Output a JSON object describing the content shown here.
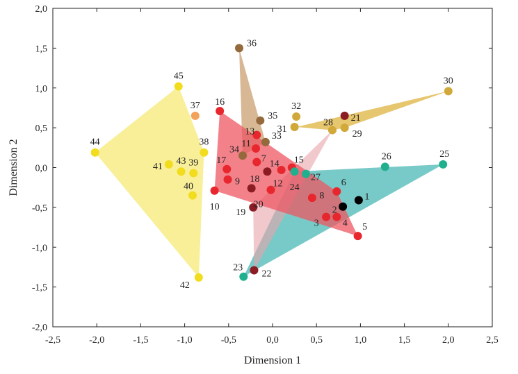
{
  "chart_data": {
    "type": "scatter",
    "title": "",
    "xlabel": "Dimension 1",
    "ylabel": "Dimension 2",
    "xlim": [
      -2.5,
      2.5
    ],
    "ylim": [
      -2.0,
      2.0
    ],
    "x_ticks": [
      "-2,5",
      "-2,0",
      "-1,5",
      "-1,0",
      "-0,5",
      "0,0",
      "0,5",
      "1,0",
      "1,5",
      "2,0",
      "2,5"
    ],
    "y_ticks": [
      "-2,0",
      "-1,5",
      "-1,0",
      "-0,5",
      "0,0",
      "0,5",
      "1,0",
      "1,5",
      "2,0"
    ],
    "tick_values_x": [
      -2.5,
      -2.0,
      -1.5,
      -1.0,
      -0.5,
      0.0,
      0.5,
      1.0,
      1.5,
      2.0,
      2.5
    ],
    "tick_values_y": [
      -2.0,
      -1.5,
      -1.0,
      -0.5,
      0.0,
      0.5,
      1.0,
      1.5,
      2.0
    ],
    "colors": {
      "yellow": "#f2dc1e",
      "orange": "#f3a25c",
      "red": "#e8262d",
      "darkred": "#8b1c24",
      "brown": "#946a3c",
      "gold": "#d1a93a",
      "teal": "#20b08e",
      "black": "#000000"
    },
    "hulls": [
      {
        "name": "yellow-group",
        "fill": "#f7ec86",
        "opacity": 0.85,
        "points": [
          [
            -2.02,
            0.19
          ],
          [
            -1.07,
            1.02
          ],
          [
            -0.78,
            0.19
          ],
          [
            -0.84,
            -1.38
          ]
        ]
      },
      {
        "name": "brown-group",
        "fill": "#c79a66",
        "opacity": 0.7,
        "points": [
          [
            -0.38,
            1.5
          ],
          [
            -0.08,
            0.32
          ],
          [
            -0.34,
            0.15
          ]
        ]
      },
      {
        "name": "gold-group",
        "fill": "#e0b84a",
        "opacity": 0.8,
        "points": [
          [
            0.27,
            0.51
          ],
          [
            2.0,
            0.96
          ],
          [
            0.82,
            0.5
          ],
          [
            0.68,
            0.47
          ]
        ]
      },
      {
        "name": "teal-group",
        "fill": "#3fb3b0",
        "opacity": 0.7,
        "points": [
          [
            0.25,
            -0.05
          ],
          [
            1.94,
            0.04
          ],
          [
            -0.33,
            -1.37
          ]
        ]
      },
      {
        "name": "pink-group",
        "fill": "#e8a3aa",
        "opacity": 0.6,
        "points": [
          [
            0.68,
            0.47
          ],
          [
            -0.22,
            -0.5
          ],
          [
            -0.21,
            -1.29
          ]
        ]
      },
      {
        "name": "red-group",
        "fill": "#ee5763",
        "opacity": 0.75,
        "points": [
          [
            -0.6,
            0.71
          ],
          [
            -0.66,
            -0.29
          ],
          [
            0.97,
            -0.86
          ],
          [
            0.73,
            -0.3
          ]
        ]
      }
    ],
    "points": [
      {
        "label": "1",
        "x": 0.98,
        "y": -0.41,
        "color": "black"
      },
      {
        "label": "2",
        "x": 0.8,
        "y": -0.49,
        "color": "black"
      },
      {
        "label": "3",
        "x": 0.61,
        "y": -0.62,
        "color": "red"
      },
      {
        "label": "4",
        "x": 0.73,
        "y": -0.62,
        "color": "red"
      },
      {
        "label": "5",
        "x": 0.97,
        "y": -0.86,
        "color": "red"
      },
      {
        "label": "6",
        "x": 0.73,
        "y": -0.3,
        "color": "red"
      },
      {
        "label": "7",
        "x": -0.18,
        "y": 0.07,
        "color": "red"
      },
      {
        "label": "8",
        "x": 0.45,
        "y": -0.38,
        "color": "red"
      },
      {
        "label": "9",
        "x": -0.51,
        "y": -0.15,
        "color": "red"
      },
      {
        "label": "10",
        "x": -0.66,
        "y": -0.29,
        "color": "red"
      },
      {
        "label": "11",
        "x": -0.19,
        "y": 0.24,
        "color": "red"
      },
      {
        "label": "12",
        "x": -0.02,
        "y": -0.28,
        "color": "red"
      },
      {
        "label": "13",
        "x": -0.18,
        "y": 0.41,
        "color": "red"
      },
      {
        "label": "14",
        "x": 0.1,
        "y": -0.03,
        "color": "red"
      },
      {
        "label": "15",
        "x": 0.22,
        "y": 0.0,
        "color": "red"
      },
      {
        "label": "16",
        "x": -0.6,
        "y": 0.71,
        "color": "red"
      },
      {
        "label": "17",
        "x": -0.52,
        "y": -0.02,
        "color": "red"
      },
      {
        "label": "18",
        "x": -0.06,
        "y": -0.05,
        "color": "darkred"
      },
      {
        "label": "19",
        "x": -0.22,
        "y": -0.5,
        "color": "darkred"
      },
      {
        "label": "20",
        "x": -0.24,
        "y": -0.26,
        "color": "darkred"
      },
      {
        "label": "21",
        "x": 0.82,
        "y": 0.65,
        "color": "darkred"
      },
      {
        "label": "22",
        "x": -0.21,
        "y": -1.29,
        "color": "darkred"
      },
      {
        "label": "23",
        "x": -0.33,
        "y": -1.37,
        "color": "teal"
      },
      {
        "label": "24",
        "x": 0.25,
        "y": -0.05,
        "color": "teal"
      },
      {
        "label": "25",
        "x": 1.94,
        "y": 0.04,
        "color": "teal"
      },
      {
        "label": "26",
        "x": 1.28,
        "y": 0.01,
        "color": "teal"
      },
      {
        "label": "27",
        "x": 0.38,
        "y": -0.08,
        "color": "teal"
      },
      {
        "label": "28",
        "x": 0.68,
        "y": 0.47,
        "color": "gold"
      },
      {
        "label": "29",
        "x": 0.82,
        "y": 0.5,
        "color": "gold"
      },
      {
        "label": "30",
        "x": 2.0,
        "y": 0.96,
        "color": "gold"
      },
      {
        "label": "31",
        "x": 0.25,
        "y": 0.51,
        "color": "gold"
      },
      {
        "label": "32",
        "x": 0.27,
        "y": 0.64,
        "color": "gold"
      },
      {
        "label": "33",
        "x": -0.08,
        "y": 0.32,
        "color": "brown"
      },
      {
        "label": "34",
        "x": -0.34,
        "y": 0.15,
        "color": "brown"
      },
      {
        "label": "35",
        "x": -0.14,
        "y": 0.59,
        "color": "brown"
      },
      {
        "label": "36",
        "x": -0.38,
        "y": 1.5,
        "color": "brown"
      },
      {
        "label": "37",
        "x": -0.88,
        "y": 0.65,
        "color": "orange"
      },
      {
        "label": "38",
        "x": -0.78,
        "y": 0.19,
        "color": "yellow"
      },
      {
        "label": "39",
        "x": -0.9,
        "y": -0.07,
        "color": "yellow"
      },
      {
        "label": "40",
        "x": -0.91,
        "y": -0.35,
        "color": "yellow"
      },
      {
        "label": "41",
        "x": -1.18,
        "y": 0.04,
        "color": "yellow"
      },
      {
        "label": "42",
        "x": -0.84,
        "y": -1.38,
        "color": "yellow"
      },
      {
        "label": "43",
        "x": -1.04,
        "y": -0.05,
        "color": "yellow"
      },
      {
        "label": "44",
        "x": -2.02,
        "y": 0.19,
        "color": "yellow"
      },
      {
        "label": "45",
        "x": -1.07,
        "y": 1.02,
        "color": "yellow"
      }
    ]
  }
}
